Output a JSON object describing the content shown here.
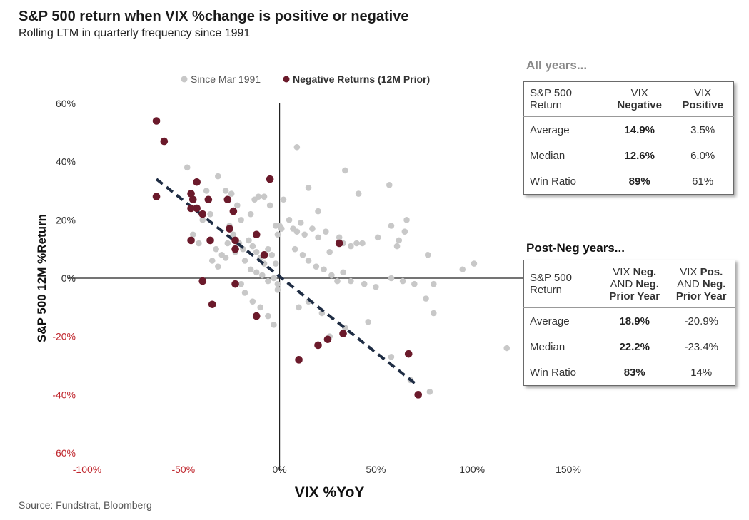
{
  "title": "S&P 500 return when VIX %change is positive or negative",
  "subtitle": "Rolling LTM in quarterly frequency since 1991",
  "source": "Source: Fundstrat, Bloomberg",
  "colors": {
    "gray_points": "#c8c8c8",
    "red_points": "#6b1a2b",
    "trend": "#1f2d44",
    "neg_tick": "#c0282f"
  },
  "chart_data": {
    "type": "scatter",
    "xlabel": "VIX %YoY",
    "ylabel": "S&P 500 12M %Return",
    "xlim": [
      -100,
      150
    ],
    "ylim": [
      -60,
      60
    ],
    "x_ticks": [
      "-100%",
      "-50%",
      "0%",
      "50%",
      "100%",
      "150%"
    ],
    "y_ticks": [
      "60%",
      "40%",
      "20%",
      "0%",
      "-20%",
      "-40%",
      "-60%"
    ],
    "legend": {
      "position": "top",
      "items": [
        "Since Mar 1991",
        "Negative Returns (12M Prior)"
      ]
    },
    "series": [
      {
        "name": "Since Mar 1991",
        "points": [
          [
            -48,
            38
          ],
          [
            -38,
            30
          ],
          [
            -32,
            35
          ],
          [
            -28,
            30
          ],
          [
            -25,
            29
          ],
          [
            -22,
            25
          ],
          [
            -26,
            18
          ],
          [
            -20,
            20
          ],
          [
            -15,
            22
          ],
          [
            -13,
            27
          ],
          [
            -11,
            28
          ],
          [
            -8,
            28
          ],
          [
            -5,
            25
          ],
          [
            -2,
            18
          ],
          [
            0,
            18
          ],
          [
            1,
            17
          ],
          [
            -1,
            15
          ],
          [
            -40,
            20
          ],
          [
            -36,
            22
          ],
          [
            -33,
            10
          ],
          [
            -30,
            8
          ],
          [
            -27,
            12
          ],
          [
            -24,
            15
          ],
          [
            -21,
            12
          ],
          [
            -19,
            10
          ],
          [
            -16,
            13
          ],
          [
            -14,
            11
          ],
          [
            -12,
            9
          ],
          [
            -10,
            7
          ],
          [
            -8,
            5
          ],
          [
            -6,
            10
          ],
          [
            -4,
            8
          ],
          [
            -2,
            5
          ],
          [
            -45,
            15
          ],
          [
            -42,
            12
          ],
          [
            -35,
            6
          ],
          [
            -32,
            4
          ],
          [
            -28,
            7
          ],
          [
            -23,
            9
          ],
          [
            -18,
            6
          ],
          [
            -15,
            3
          ],
          [
            -12,
            2
          ],
          [
            -9,
            1
          ],
          [
            -6,
            -1
          ],
          [
            -3,
            0
          ],
          [
            -1,
            -2
          ],
          [
            -20,
            -2
          ],
          [
            -18,
            -5
          ],
          [
            -14,
            -8
          ],
          [
            -10,
            -10
          ],
          [
            -6,
            -13
          ],
          [
            -3,
            -16
          ],
          [
            -1,
            -4
          ],
          [
            9,
            45
          ],
          [
            15,
            31
          ],
          [
            20,
            23
          ],
          [
            34,
            37
          ],
          [
            41,
            29
          ],
          [
            57,
            32
          ],
          [
            2,
            27
          ],
          [
            5,
            20
          ],
          [
            7,
            17
          ],
          [
            9,
            16
          ],
          [
            11,
            19
          ],
          [
            13,
            15
          ],
          [
            17,
            17
          ],
          [
            20,
            14
          ],
          [
            24,
            16
          ],
          [
            26,
            9
          ],
          [
            31,
            14
          ],
          [
            33,
            12
          ],
          [
            37,
            11
          ],
          [
            40,
            12
          ],
          [
            43,
            12
          ],
          [
            51,
            14
          ],
          [
            58,
            18
          ],
          [
            61,
            11
          ],
          [
            62,
            13
          ],
          [
            66,
            20
          ],
          [
            65,
            16
          ],
          [
            8,
            10
          ],
          [
            12,
            8
          ],
          [
            15,
            6
          ],
          [
            19,
            4
          ],
          [
            23,
            3
          ],
          [
            27,
            1
          ],
          [
            30,
            -1
          ],
          [
            33,
            2
          ],
          [
            37,
            -1
          ],
          [
            44,
            -2
          ],
          [
            50,
            -3
          ],
          [
            58,
            0
          ],
          [
            64,
            -1
          ],
          [
            70,
            -2
          ],
          [
            77,
            8
          ],
          [
            80,
            -2
          ],
          [
            95,
            3
          ],
          [
            101,
            5
          ],
          [
            10,
            -10
          ],
          [
            15,
            -8
          ],
          [
            22,
            -12
          ],
          [
            26,
            -20
          ],
          [
            34,
            -17
          ],
          [
            46,
            -15
          ],
          [
            58,
            -27
          ],
          [
            68,
            -35
          ],
          [
            76,
            -7
          ],
          [
            80,
            -12
          ],
          [
            118,
            -24
          ],
          [
            78,
            -39
          ]
        ]
      },
      {
        "name": "Negative Returns (12M Prior)",
        "points": [
          [
            -64,
            54
          ],
          [
            -60,
            47
          ],
          [
            -64,
            28
          ],
          [
            -46,
            29
          ],
          [
            -43,
            33
          ],
          [
            -37,
            27
          ],
          [
            -46,
            24
          ],
          [
            -45,
            27
          ],
          [
            -43,
            24
          ],
          [
            -40,
            22
          ],
          [
            -27,
            27
          ],
          [
            -24,
            23
          ],
          [
            -26,
            17
          ],
          [
            -23,
            13
          ],
          [
            -23,
            10
          ],
          [
            -12,
            15
          ],
          [
            -8,
            8
          ],
          [
            -5,
            34
          ],
          [
            -46,
            13
          ],
          [
            -36,
            13
          ],
          [
            -40,
            -1
          ],
          [
            -35,
            -9
          ],
          [
            -23,
            -2
          ],
          [
            -12,
            -13
          ],
          [
            31,
            12
          ],
          [
            10,
            -28
          ],
          [
            20,
            -23
          ],
          [
            25,
            -21
          ],
          [
            33,
            -19
          ],
          [
            67,
            -26
          ],
          [
            72,
            -40
          ]
        ]
      }
    ],
    "trendline": {
      "x": [
        -64,
        72
      ],
      "y": [
        34,
        -37
      ]
    }
  },
  "table_all": {
    "heading": "All years...",
    "header": {
      "col0": [
        "S&P 500",
        "Return"
      ],
      "col1": [
        "VIX",
        "Negative"
      ],
      "col2": [
        "VIX",
        "Positive"
      ]
    },
    "rows": [
      {
        "label": "Average",
        "neg": "14.9%",
        "pos": "3.5%"
      },
      {
        "label": "Median",
        "neg": "12.6%",
        "pos": "6.0%"
      },
      {
        "label": "Win Ratio",
        "neg": "89%",
        "pos": "61%"
      }
    ]
  },
  "table_post": {
    "heading": "Post-Neg years...",
    "header": {
      "col0": [
        "S&P 500",
        "Return"
      ],
      "col1": {
        "l1a": "VIX ",
        "l1b": "Neg.",
        "l2a": "AND ",
        "l2b": "Neg.",
        "l3": "Prior Year"
      },
      "col2": {
        "l1a": "VIX ",
        "l1b": "Pos.",
        "l2a": "AND ",
        "l2b": "Neg.",
        "l3": "Prior Year"
      }
    },
    "rows": [
      {
        "label": "Average",
        "a": "18.9%",
        "b": "-20.9%"
      },
      {
        "label": "Median",
        "a": "22.2%",
        "b": "-23.4%"
      },
      {
        "label": "Win Ratio",
        "a": "83%",
        "b": "14%"
      }
    ]
  }
}
